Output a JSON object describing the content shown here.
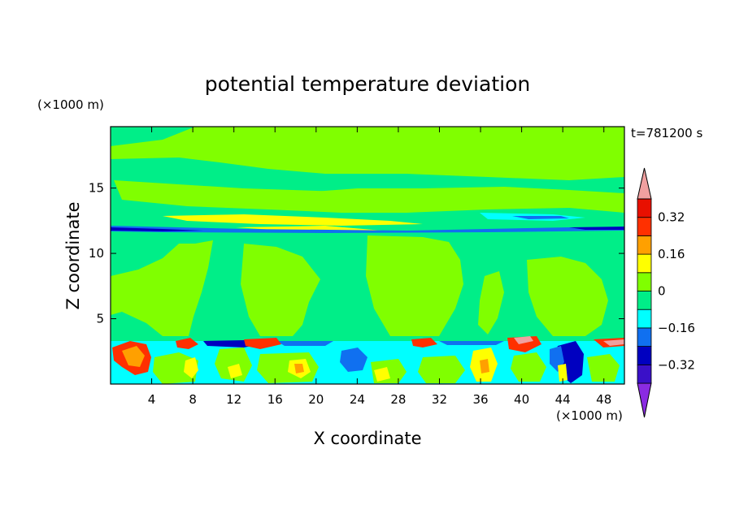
{
  "chart_data": {
    "type": "heatmap",
    "title": "potential temperature deviation",
    "xlabel": "X coordinate",
    "ylabel": "Z coordinate",
    "x_unit": "(×1000 m)",
    "y_unit": "(×1000 m)",
    "time_label": "t=781200 s",
    "xlim": [
      0,
      50
    ],
    "ylim": [
      0,
      19.7
    ],
    "x_ticks": [
      4,
      8,
      12,
      16,
      20,
      24,
      28,
      32,
      36,
      40,
      44,
      48
    ],
    "y_ticks": [
      5,
      10,
      15
    ],
    "colorbar": {
      "levels": [
        -0.4,
        -0.32,
        -0.24,
        -0.16,
        -0.08,
        0,
        0.08,
        0.16,
        0.24,
        0.32,
        0.4
      ],
      "labeled_levels": [
        {
          "value": 0.32,
          "label": "0.32"
        },
        {
          "value": 0.16,
          "label": "0.16"
        },
        {
          "value": 0,
          "label": "0"
        },
        {
          "value": -0.16,
          "label": "−0.16"
        },
        {
          "value": -0.32,
          "label": "−0.32"
        }
      ],
      "band_colors": [
        "#8a2be2",
        "#3a10c8",
        "#0000c0",
        "#1070f0",
        "#00ffff",
        "#00ee88",
        "#80ff00",
        "#ffff00",
        "#ffa000",
        "#ff3000",
        "#e81000",
        "#f0a0a0"
      ]
    },
    "features": [
      {
        "name": "upper-green-cap",
        "x": [
          8.5,
          50
        ],
        "z": [
          16,
          19.7
        ],
        "value_band": "0 to 0.08"
      },
      {
        "name": "green-layer",
        "x": [
          0,
          48
        ],
        "z": [
          13.5,
          16
        ],
        "value_band": "0 to 0.08"
      },
      {
        "name": "warm-streak",
        "x": [
          3,
          30
        ],
        "z": [
          12.2,
          13.2
        ],
        "value_band": "0.16 to 0.24"
      },
      {
        "name": "tropopause-cold-band",
        "x": [
          0,
          50
        ],
        "z": [
          11.9,
          12.3
        ],
        "value_band": "-0.32 to -0.24"
      },
      {
        "name": "green-plumes",
        "x": [
          [
            4,
            9.5
          ],
          [
            12.5,
            19
          ],
          [
            26,
            33
          ]
        ],
        "z": [
          3.5,
          11
        ],
        "value_band": "0 to 0.08"
      },
      {
        "name": "boundary-cold-line",
        "x": [
          0,
          50
        ],
        "z": [
          3.2,
          3.6
        ],
        "value_band": "-0.16 to -0.08"
      },
      {
        "name": "low-level-turbulence",
        "x": [
          0,
          50
        ],
        "z": [
          0,
          3.5
        ],
        "value_band": "-0.32 to 0.4"
      }
    ]
  }
}
